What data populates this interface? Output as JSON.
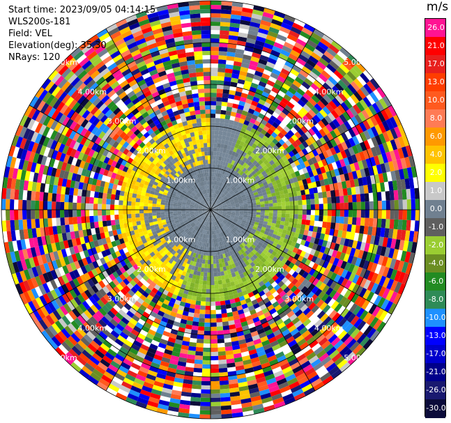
{
  "header": {
    "start_time": "Start time: 2023/09/05 04:14:15",
    "instrument": "WLS200s-181",
    "field": "Field: VEL",
    "elevation": "Elevation(deg): 35.30",
    "nrays": "NRays: 120"
  },
  "chart_data": {
    "type": "heatmap",
    "projection": "polar-ppi",
    "title": "",
    "field": "VEL",
    "unit": "m/s",
    "rays": 120,
    "range_rings_km": [
      1.0,
      2.0,
      3.0,
      4.0,
      5.0
    ],
    "range_ring_labels": [
      "1.00km",
      "2.00km",
      "3.00km",
      "4.00km",
      "5.00km"
    ],
    "max_range_km": 5.0,
    "valid_signal_range_km": 2.2,
    "spokes_every_deg": 30,
    "colorbar": {
      "levels": [
        "26.0",
        "21.0",
        "17.0",
        "13.0",
        "10.0",
        "8.0",
        "6.0",
        "4.0",
        "2.0",
        "1.0",
        "0.0",
        "-1.0",
        "-2.0",
        "-4.0",
        "-6.0",
        "-8.0",
        "-10.0",
        "-13.0",
        "-17.0",
        "-21.0",
        "-26.0",
        "-30.0"
      ],
      "colors": [
        "#ff1493",
        "#ff0000",
        "#e8201e",
        "#ff3d00",
        "#ff5a1f",
        "#ff7b55",
        "#ff9900",
        "#ffc300",
        "#ffff00",
        "#c8c8c8",
        "#708090",
        "#5f5f5f",
        "#9acd32",
        "#6b8e23",
        "#228b22",
        "#2e8b57",
        "#1e90ff",
        "#0000ff",
        "#0000cd",
        "#00008b",
        "#191970",
        "#0b0b3a"
      ]
    },
    "wind_pattern": {
      "description": "dipole",
      "positive_sector_deg": [
        200,
        360
      ],
      "negative_sector_deg": [
        20,
        200
      ]
    }
  }
}
